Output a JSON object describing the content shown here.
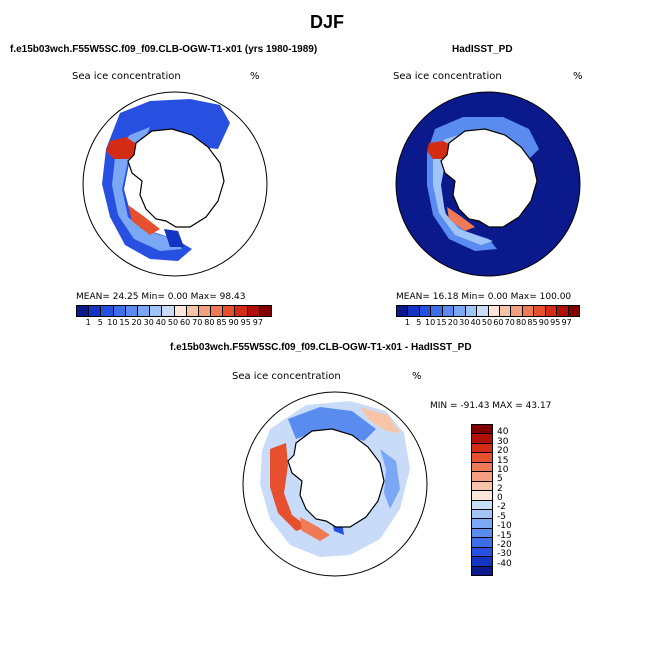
{
  "title": "DJF",
  "panel1": {
    "case_title": "f.e15b03wch.F55W5SC.f09_f09.CLB-OGW-T1-x01 (yrs 1980-1989)",
    "variable": "Sea ice concentration",
    "units": "%",
    "stats": "MEAN=  24.25  Min=   0.00  Max=  98.43"
  },
  "panel2": {
    "case_title": "HadISST_PD",
    "variable": "Sea ice concentration",
    "units": "%",
    "stats": "MEAN=  16.18  Min=   0.00  Max= 100.00"
  },
  "panel3": {
    "case_title": "f.e15b03wch.F55W5SC.f09_f09.CLB-OGW-T1-x01 - HadISST_PD",
    "variable": "Sea ice concentration",
    "units": "%",
    "stats": "MIN = -91.43 MAX =  43.17"
  },
  "conc_colorbar": {
    "labels": [
      "1",
      "5",
      "10",
      "15",
      "20",
      "30",
      "40",
      "50",
      "60",
      "70",
      "80",
      "85",
      "90",
      "95",
      "97"
    ],
    "colors": [
      "#0a1a8c",
      "#1434c4",
      "#2850e0",
      "#3c6ee8",
      "#5a8cf0",
      "#7aa8f4",
      "#a0c4f8",
      "#c8dcfa",
      "#fde6d8",
      "#f8c4a8",
      "#f4a080",
      "#ee7a56",
      "#e6502e",
      "#d42c14",
      "#b01008",
      "#800000"
    ]
  },
  "diff_colorbar": {
    "labels": [
      "40",
      "30",
      "20",
      "15",
      "10",
      "5",
      "2",
      "0",
      "-2",
      "-5",
      "-10",
      "-15",
      "-20",
      "-30",
      "-40"
    ],
    "colors": [
      "#800000",
      "#b01008",
      "#d42c14",
      "#e6502e",
      "#ee7a56",
      "#f4a080",
      "#f8c4a8",
      "#fde6d8",
      "#c8dcfa",
      "#a0c4f8",
      "#7aa8f4",
      "#5a8cf0",
      "#3c6ee8",
      "#2850e0",
      "#1434c4",
      "#0a1a8c"
    ]
  }
}
